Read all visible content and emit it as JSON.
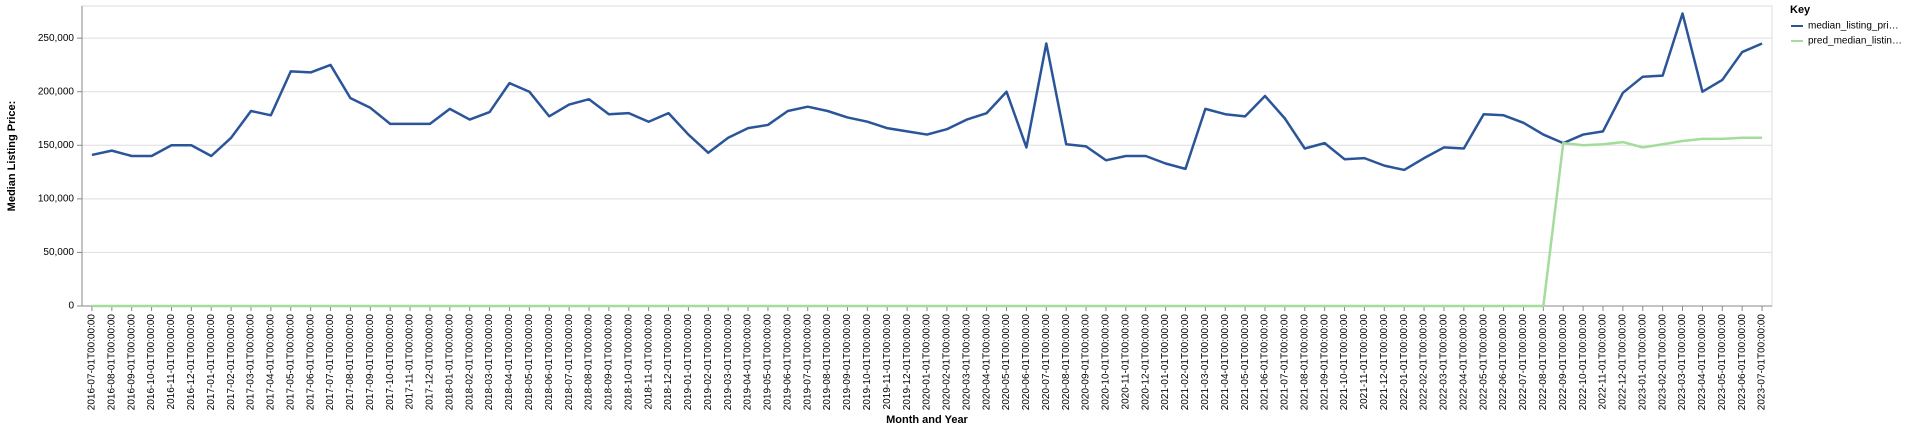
{
  "chart_data": {
    "type": "line",
    "x_label": "Month and Year",
    "y_label": "Median Listing Price:",
    "legend_title": "Key",
    "legend_position": "right",
    "grid": true,
    "categories": [
      "2016-07-01T00:00:00",
      "2016-08-01T00:00:00",
      "2016-09-01T00:00:00",
      "2016-10-01T00:00:00",
      "2016-11-01T00:00:00",
      "2016-12-01T00:00:00",
      "2017-01-01T00:00:00",
      "2017-02-01T00:00:00",
      "2017-03-01T00:00:00",
      "2017-04-01T00:00:00",
      "2017-05-01T00:00:00",
      "2017-06-01T00:00:00",
      "2017-07-01T00:00:00",
      "2017-08-01T00:00:00",
      "2017-09-01T00:00:00",
      "2017-10-01T00:00:00",
      "2017-11-01T00:00:00",
      "2017-12-01T00:00:00",
      "2018-01-01T00:00:00",
      "2018-02-01T00:00:00",
      "2018-03-01T00:00:00",
      "2018-04-01T00:00:00",
      "2018-05-01T00:00:00",
      "2018-06-01T00:00:00",
      "2018-07-01T00:00:00",
      "2018-08-01T00:00:00",
      "2018-09-01T00:00:00",
      "2018-10-01T00:00:00",
      "2018-11-01T00:00:00",
      "2018-12-01T00:00:00",
      "2019-01-01T00:00:00",
      "2019-02-01T00:00:00",
      "2019-03-01T00:00:00",
      "2019-04-01T00:00:00",
      "2019-05-01T00:00:00",
      "2019-06-01T00:00:00",
      "2019-07-01T00:00:00",
      "2019-08-01T00:00:00",
      "2019-09-01T00:00:00",
      "2019-10-01T00:00:00",
      "2019-11-01T00:00:00",
      "2019-12-01T00:00:00",
      "2020-01-01T00:00:00",
      "2020-02-01T00:00:00",
      "2020-03-01T00:00:00",
      "2020-04-01T00:00:00",
      "2020-05-01T00:00:00",
      "2020-06-01T00:00:00",
      "2020-07-01T00:00:00",
      "2020-08-01T00:00:00",
      "2020-09-01T00:00:00",
      "2020-10-01T00:00:00",
      "2020-11-01T00:00:00",
      "2020-12-01T00:00:00",
      "2021-01-01T00:00:00",
      "2021-02-01T00:00:00",
      "2021-03-01T00:00:00",
      "2021-04-01T00:00:00",
      "2021-05-01T00:00:00",
      "2021-06-01T00:00:00",
      "2021-07-01T00:00:00",
      "2021-08-01T00:00:00",
      "2021-09-01T00:00:00",
      "2021-10-01T00:00:00",
      "2021-11-01T00:00:00",
      "2021-12-01T00:00:00",
      "2022-01-01T00:00:00",
      "2022-02-01T00:00:00",
      "2022-03-01T00:00:00",
      "2022-04-01T00:00:00",
      "2022-05-01T00:00:00",
      "2022-06-01T00:00:00",
      "2022-07-01T00:00:00",
      "2022-08-01T00:00:00",
      "2022-09-01T00:00:00",
      "2022-10-01T00:00:00",
      "2022-11-01T00:00:00",
      "2022-12-01T00:00:00",
      "2023-01-01T00:00:00",
      "2023-02-01T00:00:00",
      "2023-03-01T00:00:00",
      "2023-04-01T00:00:00",
      "2023-05-01T00:00:00",
      "2023-06-01T00:00:00",
      "2023-07-01T00:00:00"
    ],
    "series": [
      {
        "name": "median_listing_pri…",
        "color": "#2a5599",
        "values": [
          141000,
          145000,
          140000,
          140000,
          150000,
          150000,
          140000,
          157000,
          182000,
          178000,
          219000,
          218000,
          225000,
          194000,
          185000,
          170000,
          170000,
          170000,
          184000,
          174000,
          181000,
          208000,
          200000,
          177000,
          188000,
          193000,
          179000,
          180000,
          172000,
          180000,
          160000,
          143000,
          157000,
          166000,
          169000,
          182000,
          186000,
          182000,
          176000,
          172000,
          166000,
          163000,
          160000,
          165000,
          174000,
          180000,
          200000,
          148000,
          245000,
          151000,
          149000,
          136000,
          140000,
          140000,
          133000,
          128000,
          184000,
          179000,
          177000,
          196000,
          175000,
          147000,
          152000,
          137000,
          138000,
          131000,
          127000,
          138000,
          148000,
          147000,
          179000,
          178000,
          171000,
          160000,
          152000,
          160000,
          163000,
          199000,
          214000,
          215000,
          273000,
          200000,
          211000,
          237000,
          245000
        ]
      },
      {
        "name": "pred_median_listin…",
        "color": "#a4dc9c",
        "values": [
          0,
          0,
          0,
          0,
          0,
          0,
          0,
          0,
          0,
          0,
          0,
          0,
          0,
          0,
          0,
          0,
          0,
          0,
          0,
          0,
          0,
          0,
          0,
          0,
          0,
          0,
          0,
          0,
          0,
          0,
          0,
          0,
          0,
          0,
          0,
          0,
          0,
          0,
          0,
          0,
          0,
          0,
          0,
          0,
          0,
          0,
          0,
          0,
          0,
          0,
          0,
          0,
          0,
          0,
          0,
          0,
          0,
          0,
          0,
          0,
          0,
          0,
          0,
          0,
          0,
          0,
          0,
          0,
          0,
          0,
          0,
          0,
          0,
          0,
          152000,
          150000,
          151000,
          153000,
          148000,
          151000,
          154000,
          156000,
          156000,
          157000,
          157000
        ]
      }
    ],
    "ylim": [
      0,
      280000
    ],
    "yticks": [
      0,
      {
        "value": 50000,
        "label": "50,000"
      },
      {
        "value": 100000,
        "label": "100,000"
      },
      {
        "value": 150000,
        "label": "150,000"
      },
      {
        "value": 200000,
        "label": "200,000"
      },
      {
        "value": 250000,
        "label": "250,000"
      }
    ]
  }
}
